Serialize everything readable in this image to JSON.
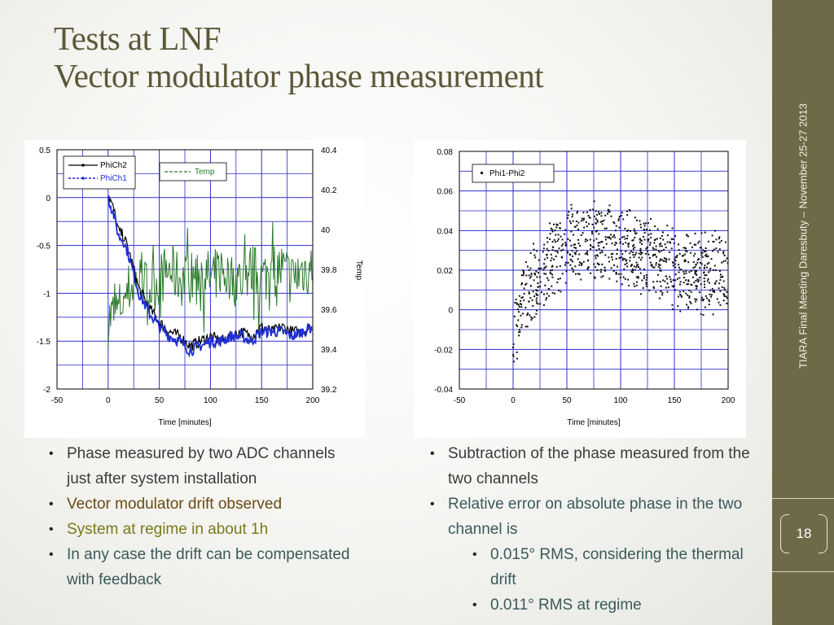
{
  "slide": {
    "title_line1": "Tests at LNF",
    "title_line2": "Vector modulator phase measurement",
    "sidebar_text": "TIARA Final Meeting      Daresbuty – November 25-27 2013",
    "page_number": "18",
    "colors": {
      "sidebar": "#6e6947",
      "title": "#5c5838",
      "brown_text": "#6b4a14",
      "olive_text": "#7a7a1c",
      "teal_text": "#3a5a5a",
      "dark_text": "#3b3b3b"
    }
  },
  "left_bullets": [
    {
      "text": "Phase measured by two ADC channels just after system installation",
      "color": "#3b3b3b"
    },
    {
      "text": "Vector modulator drift observed",
      "color": "#6b4a14"
    },
    {
      "text": "System at regime in about 1h",
      "color": "#7a7a1c"
    },
    {
      "text": "In any case the drift can be compensated with feedback",
      "color": "#3a5a5a"
    }
  ],
  "right_bullets": [
    {
      "text": "Subtraction of the phase measured from the two channels",
      "color": "#3b3b3b",
      "level": 1
    },
    {
      "text": "Relative error on absolute phase in the two channel is",
      "color": "#3a5a5a",
      "level": 1
    },
    {
      "text": "0.015° RMS, considering the thermal drift",
      "color": "#3a5a5a",
      "level": 2
    },
    {
      "text": "0.011° RMS at regime",
      "color": "#3a5a5a",
      "level": 2
    }
  ],
  "chart_data": [
    {
      "type": "line",
      "xlabel": "Time [minutes]",
      "ylabel": "",
      "y2label": "Temp",
      "xlim": [
        -50,
        200
      ],
      "ylim": [
        -2,
        0.5
      ],
      "y2lim": [
        39.2,
        40.4
      ],
      "x_ticks": [
        "-50",
        "0",
        "50",
        "100",
        "150",
        "200"
      ],
      "y_ticks": [
        "0.5",
        "0",
        "-0.5",
        "-1",
        "-1.5",
        "-2"
      ],
      "y2_ticks": [
        "40.4",
        "40.2",
        "40",
        "39.8",
        "39.6",
        "39.4",
        "39.2"
      ],
      "grid": true,
      "legend": [
        "PhiCh2",
        "PhiCh1",
        "Temp"
      ],
      "series": [
        {
          "name": "PhiCh2",
          "color": "#000000",
          "axis": "left",
          "x": [
            0,
            3,
            6,
            10,
            15,
            20,
            25,
            30,
            35,
            40,
            50,
            60,
            70,
            80,
            90,
            100,
            110,
            120,
            130,
            140,
            150,
            160,
            170,
            180,
            190,
            200
          ],
          "y": [
            0.05,
            -0.05,
            -0.15,
            -0.35,
            -0.4,
            -0.55,
            -0.75,
            -0.95,
            -1.05,
            -1.15,
            -1.3,
            -1.4,
            -1.45,
            -1.55,
            -1.5,
            -1.45,
            -1.5,
            -1.45,
            -1.4,
            -1.45,
            -1.35,
            -1.4,
            -1.35,
            -1.4,
            -1.4,
            -1.35
          ]
        },
        {
          "name": "PhiCh1",
          "color": "#1f2fd6",
          "axis": "left",
          "x": [
            0,
            3,
            6,
            10,
            15,
            20,
            25,
            30,
            35,
            40,
            50,
            60,
            70,
            80,
            90,
            100,
            110,
            120,
            130,
            140,
            150,
            160,
            170,
            180,
            190,
            200
          ],
          "y": [
            0.0,
            -0.1,
            -0.2,
            -0.4,
            -0.45,
            -0.6,
            -0.8,
            -1.0,
            -1.1,
            -1.2,
            -1.35,
            -1.45,
            -1.5,
            -1.6,
            -1.55,
            -1.5,
            -1.5,
            -1.45,
            -1.45,
            -1.5,
            -1.4,
            -1.4,
            -1.4,
            -1.45,
            -1.4,
            -1.35
          ]
        },
        {
          "name": "Temp",
          "color": "#2a7a2a",
          "axis": "right",
          "x": [
            0,
            10,
            20,
            30,
            40,
            50,
            60,
            70,
            80,
            90,
            100,
            110,
            120,
            130,
            140,
            150,
            160,
            170,
            180,
            190,
            200
          ],
          "y": [
            39.55,
            39.6,
            39.7,
            39.75,
            39.7,
            39.75,
            39.8,
            39.75,
            39.75,
            39.8,
            39.75,
            39.8,
            39.75,
            39.75,
            39.8,
            39.75,
            39.8,
            39.8,
            39.75,
            39.8,
            39.8
          ]
        }
      ]
    },
    {
      "type": "scatter",
      "xlabel": "Time [minutes]",
      "ylabel": "",
      "xlim": [
        -50,
        200
      ],
      "ylim": [
        -0.04,
        0.08
      ],
      "x_ticks": [
        "-50",
        "0",
        "50",
        "100",
        "150",
        "200"
      ],
      "y_ticks": [
        "0.08",
        "0.06",
        "0.04",
        "0.02",
        "0",
        "-0.02",
        "-0.04"
      ],
      "grid": true,
      "legend": [
        "Phi1-Phi2"
      ],
      "series": [
        {
          "name": "Phi1-Phi2",
          "color": "#111111",
          "x": [
            0,
            5,
            10,
            15,
            20,
            25,
            30,
            35,
            40,
            45,
            50,
            60,
            70,
            80,
            90,
            100,
            110,
            120,
            130,
            140,
            150,
            160,
            170,
            180,
            190,
            200
          ],
          "y": [
            -0.01,
            0.0,
            0.005,
            0.01,
            0.015,
            0.02,
            0.02,
            0.025,
            0.03,
            0.03,
            0.032,
            0.035,
            0.036,
            0.035,
            0.034,
            0.032,
            0.03,
            0.028,
            0.025,
            0.022,
            0.02,
            0.02,
            0.019,
            0.018,
            0.02,
            0.02
          ]
        }
      ]
    }
  ]
}
